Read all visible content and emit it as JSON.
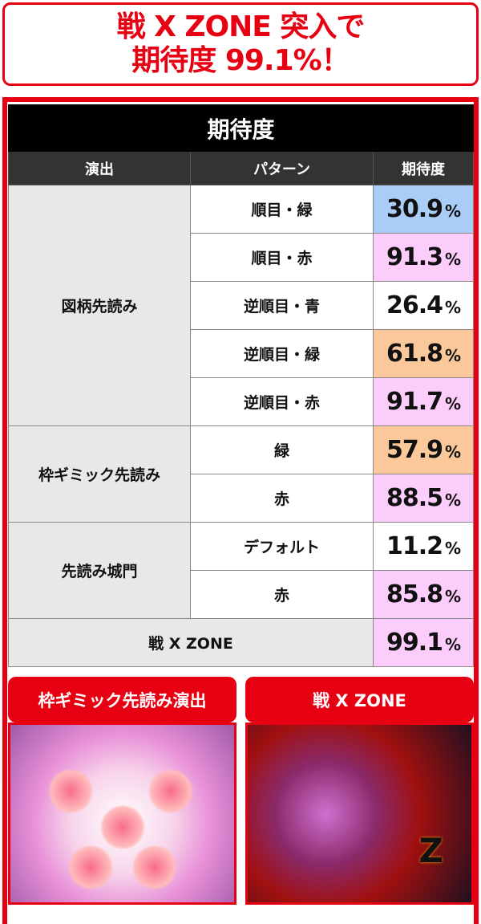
{
  "headline": {
    "line1": "戦 X ZONE 突入で",
    "line2": "期待度 99.1%！"
  },
  "table": {
    "title": "期待度",
    "headers": [
      "演出",
      "パターン",
      "期待度"
    ],
    "groups": [
      {
        "name": "図柄先読み",
        "rows": [
          {
            "pattern": "順目・緑",
            "value": "30.9",
            "color": "#a9cdf7"
          },
          {
            "pattern": "順目・赤",
            "value": "91.3",
            "color": "#fcccfb"
          },
          {
            "pattern": "逆順目・青",
            "value": "26.4",
            "color": "#ffffff"
          },
          {
            "pattern": "逆順目・緑",
            "value": "61.8",
            "color": "#fbc89b"
          },
          {
            "pattern": "逆順目・赤",
            "value": "91.7",
            "color": "#fcccfb"
          }
        ]
      },
      {
        "name": "枠ギミック先読み",
        "rows": [
          {
            "pattern": "緑",
            "value": "57.9",
            "color": "#fbc89b"
          },
          {
            "pattern": "赤",
            "value": "88.5",
            "color": "#fcccfb"
          }
        ]
      },
      {
        "name": "先読み城門",
        "rows": [
          {
            "pattern": "デフォルト",
            "value": "11.2",
            "color": "#ffffff"
          },
          {
            "pattern": "赤",
            "value": "85.8",
            "color": "#fcccfb"
          }
        ]
      }
    ],
    "final": {
      "name": "戦 X ZONE",
      "value": "99.1",
      "color": "#fcccfb"
    },
    "percent": "%"
  },
  "captions": [
    "枠ギミック先読み演出",
    "戦 X ZONE"
  ],
  "accent": "#e60012"
}
